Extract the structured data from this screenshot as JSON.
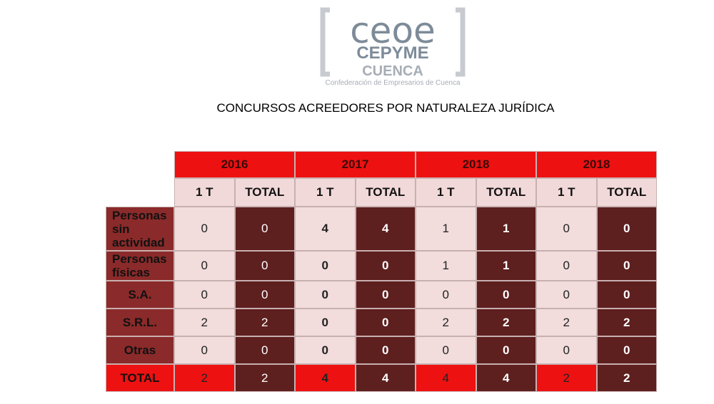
{
  "logo": {
    "brand": "ceoe",
    "brand2": "CEPYME",
    "city": "CUENCA",
    "tagline": "Confederación de Empresarios de Cuenca"
  },
  "title": "CONCURSOS ACREEDORES POR NATURALEZA JURÍDICA",
  "table": {
    "years": [
      "2016",
      "2017",
      "2018",
      "2018"
    ],
    "subheaders": [
      "1 T",
      "TOTAL",
      "1 T",
      "TOTAL",
      "1 T",
      "TOTAL",
      "1 T",
      "TOTAL"
    ],
    "rows": [
      {
        "label": "Personas sin actividad",
        "values": [
          0,
          0,
          4,
          4,
          1,
          1,
          0,
          0
        ]
      },
      {
        "label": "Personas físicas",
        "values": [
          0,
          0,
          0,
          0,
          1,
          1,
          0,
          0
        ]
      },
      {
        "label": "S.A.",
        "values": [
          0,
          0,
          0,
          0,
          0,
          0,
          0,
          0
        ]
      },
      {
        "label": "S.R.L.",
        "values": [
          2,
          2,
          0,
          0,
          2,
          2,
          2,
          2
        ]
      },
      {
        "label": "Otras",
        "values": [
          0,
          0,
          0,
          0,
          0,
          0,
          0,
          0
        ]
      },
      {
        "label": "TOTAL",
        "values": [
          2,
          2,
          4,
          4,
          4,
          4,
          2,
          2
        ]
      }
    ]
  }
}
